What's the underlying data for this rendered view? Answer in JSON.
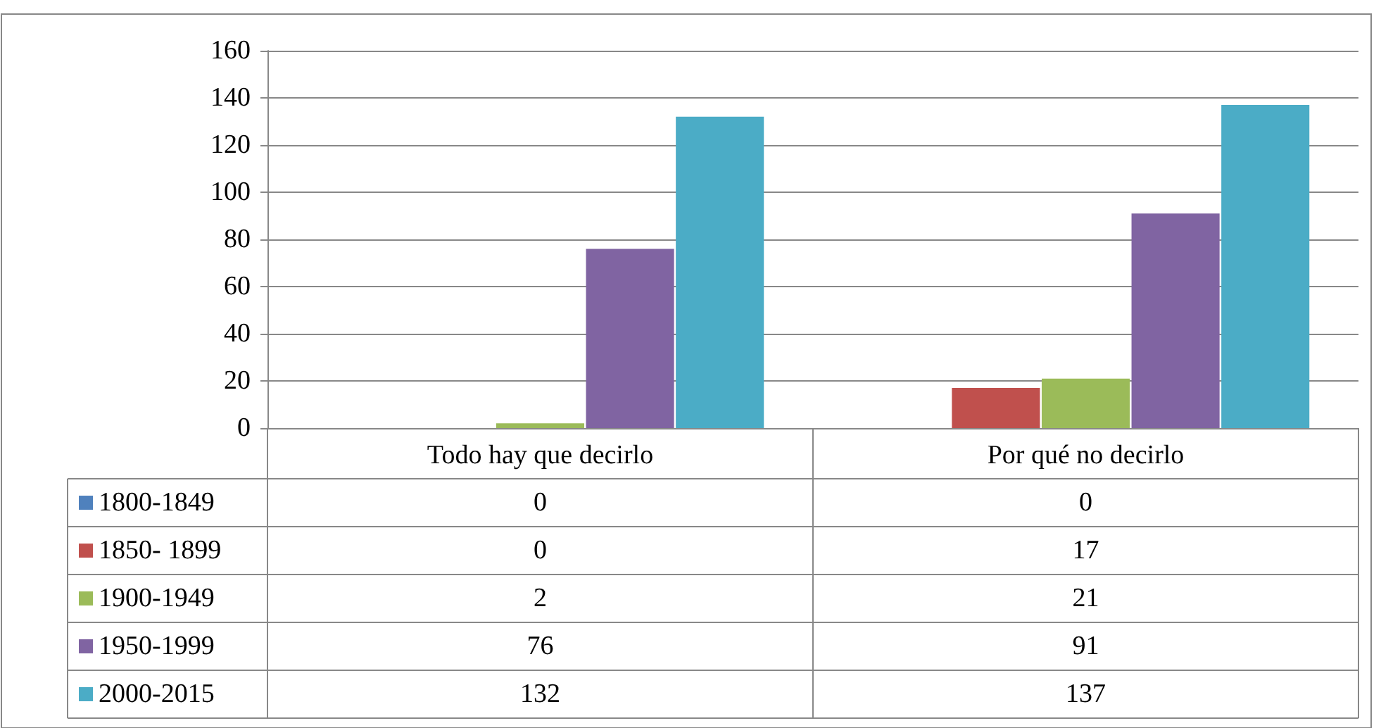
{
  "chart_data": {
    "type": "bar",
    "categories": [
      "Todo hay que decirlo",
      "Por qué no decirlo"
    ],
    "series": [
      {
        "name": "1800-1849",
        "color": "#4f81bd",
        "values": [
          0,
          0
        ]
      },
      {
        "name": "1850- 1899",
        "color": "#c0504d",
        "values": [
          0,
          17
        ]
      },
      {
        "name": "1900-1949",
        "color": "#9bbb59",
        "values": [
          2,
          21
        ]
      },
      {
        "name": "1950-1999",
        "color": "#8064a2",
        "values": [
          76,
          91
        ]
      },
      {
        "name": "2000-2015",
        "color": "#4bacc6",
        "values": [
          132,
          137
        ]
      }
    ],
    "ylim": [
      0,
      160
    ],
    "yticks": [
      0,
      20,
      40,
      60,
      80,
      100,
      120,
      140,
      160
    ],
    "grid": "y",
    "legend": "bottom",
    "data_labels": true
  }
}
